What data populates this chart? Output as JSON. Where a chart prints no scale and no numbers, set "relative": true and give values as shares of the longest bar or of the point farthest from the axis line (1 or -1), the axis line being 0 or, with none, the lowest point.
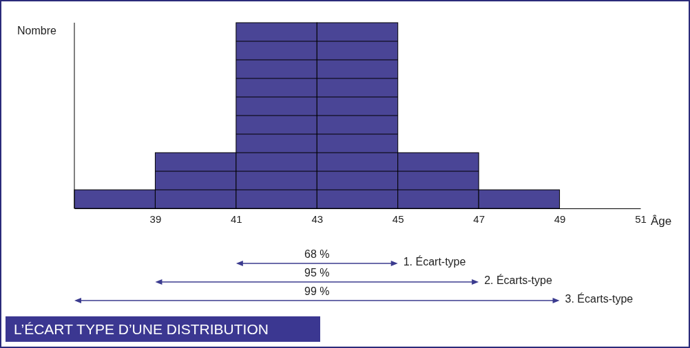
{
  "chart_data": {
    "type": "bar",
    "title": "L’ÉCART TYPE D’UNE DISTRIBUTION",
    "xlabel": "Âge",
    "ylabel": "Nombre",
    "relative": true,
    "color": "#4a4596",
    "x": [
      38,
      40,
      42,
      44,
      46,
      48
    ],
    "values": [
      0.1,
      0.3,
      1,
      1,
      0.3,
      0.1
    ],
    "xlim": [
      37,
      51
    ],
    "xticks": [
      39,
      41,
      43,
      45,
      47,
      49,
      51
    ],
    "annotations": [
      "68 %",
      "1. Écart-type",
      "95 %",
      "2. Écarts-type",
      "99 %",
      "3. Écarts-type"
    ]
  }
}
